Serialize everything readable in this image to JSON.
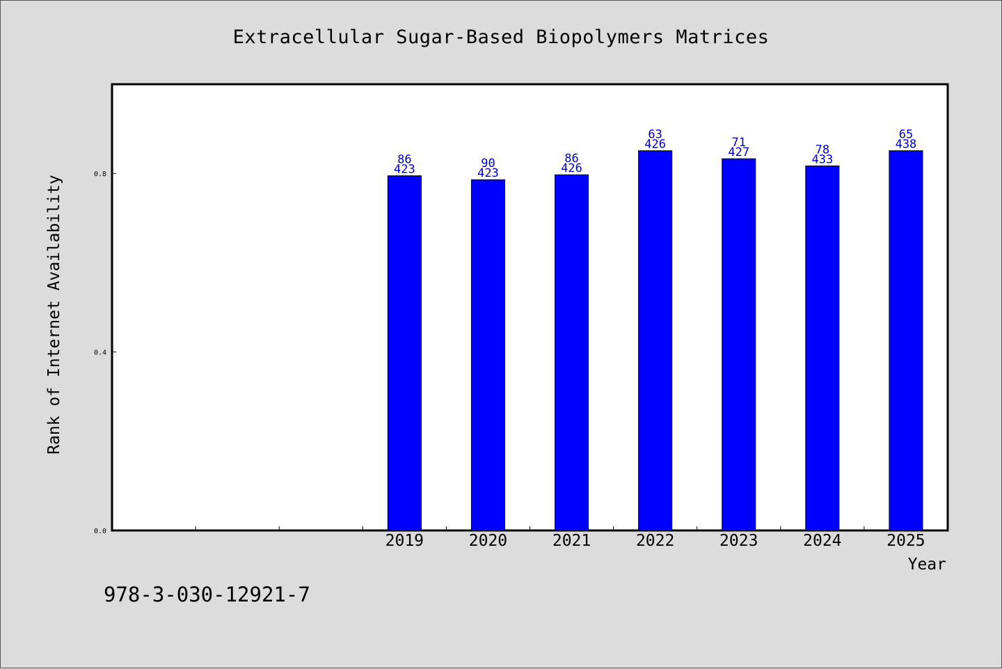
{
  "chart_data": {
    "type": "bar",
    "title": "Extracellular Sugar-Based Biopolymers Matrices",
    "xlabel": "Year",
    "ylabel": "Rank of Internet Availability",
    "categories": [
      "",
      "",
      "",
      "2019",
      "2020",
      "2021",
      "2022",
      "2023",
      "2024",
      "2025"
    ],
    "values": [
      null,
      null,
      null,
      0.795,
      0.786,
      0.797,
      0.851,
      0.833,
      0.817,
      0.851
    ],
    "labels_top": [
      "",
      "",
      "",
      "86",
      "90",
      "86",
      "63",
      "71",
      "78",
      "65"
    ],
    "labels_bottom": [
      "",
      "",
      "",
      "423",
      "423",
      "426",
      "426",
      "427",
      "433",
      "438"
    ],
    "ylim": [
      0,
      1.0
    ],
    "yticks": [
      0.0,
      0.4,
      0.8
    ],
    "ytick_labels": [
      "0.0",
      "0.4",
      "0.8"
    ],
    "grid": false,
    "bar_color": "#0000ff",
    "label_color": "#0000cc"
  },
  "footer": {
    "isbn": "978-3-030-12921-7"
  }
}
